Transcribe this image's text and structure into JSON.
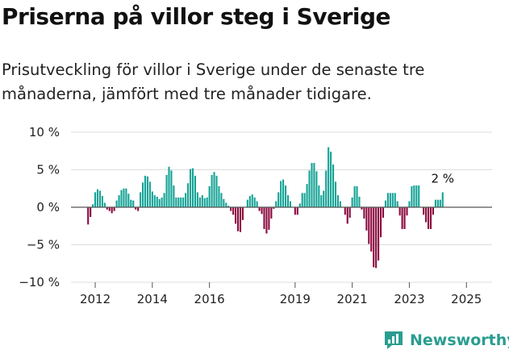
{
  "title": "Priserna på villor steg i Sverige",
  "subtitle": "Prisutveckling för villor i Sverige under de senaste tre månaderna, jämfört med tre månader tidigare.",
  "brand": {
    "name": "Newsworthy",
    "icon": "newsworthy-logo-icon"
  },
  "colors": {
    "positive": "#14a396",
    "negative": "#8b0a3f",
    "grid": "#dddddd",
    "zero": "#555555"
  },
  "chart_data": {
    "type": "bar",
    "x_start": "2011-10",
    "x_ticks": [
      "2012",
      "2014",
      "2016",
      "2019",
      "2021",
      "2023",
      "2025"
    ],
    "y_ticks": [
      "10 %",
      "5 %",
      "0 %",
      "−5 %",
      "−10 %"
    ],
    "ylim": [
      -10,
      10
    ],
    "grid": true,
    "annotation": "2 %",
    "values": [
      -2.3,
      -1.3,
      0.4,
      2.0,
      2.4,
      2.2,
      1.5,
      0.6,
      -0.3,
      -0.5,
      -0.8,
      -0.5,
      0.9,
      1.6,
      2.3,
      2.5,
      2.5,
      1.8,
      1.0,
      0.9,
      -0.3,
      -0.5,
      2.0,
      3.3,
      4.2,
      4.1,
      3.4,
      2.1,
      1.6,
      1.4,
      1.1,
      1.3,
      1.9,
      4.3,
      5.4,
      4.9,
      2.9,
      1.3,
      1.3,
      1.3,
      1.3,
      1.9,
      3.2,
      5.1,
      5.2,
      4.2,
      2.0,
      1.3,
      1.6,
      1.2,
      1.3,
      2.8,
      4.3,
      4.7,
      4.2,
      2.8,
      1.9,
      1.1,
      0.6,
      0.2,
      -0.5,
      -1.0,
      -2.2,
      -3.2,
      -3.3,
      -1.7,
      0.0,
      1.0,
      1.5,
      1.7,
      1.3,
      0.8,
      -0.5,
      -0.9,
      -2.9,
      -3.5,
      -3.0,
      -1.5,
      -0.2,
      0.8,
      2.0,
      3.5,
      3.7,
      2.9,
      1.6,
      0.8,
      0.0,
      -1.0,
      -1.0,
      0.5,
      1.9,
      1.9,
      3.1,
      4.9,
      5.9,
      5.9,
      4.8,
      2.9,
      1.6,
      2.2,
      4.9,
      8.0,
      7.4,
      5.7,
      3.4,
      1.6,
      0.8,
      0.0,
      -1.0,
      -2.2,
      -1.4,
      1.3,
      2.8,
      2.8,
      1.4,
      -0.3,
      -1.5,
      -3.1,
      -4.9,
      -5.9,
      -8.0,
      -8.1,
      -7.1,
      -4.0,
      -1.4,
      0.9,
      1.9,
      1.9,
      1.9,
      1.9,
      0.8,
      -1.1,
      -2.9,
      -2.9,
      -1.1,
      0.8,
      2.8,
      2.9,
      2.9,
      2.9,
      0.0,
      -1.0,
      -2.0,
      -2.9,
      -2.9,
      -1.0,
      1.0,
      1.0,
      1.0,
      2.0
    ]
  }
}
